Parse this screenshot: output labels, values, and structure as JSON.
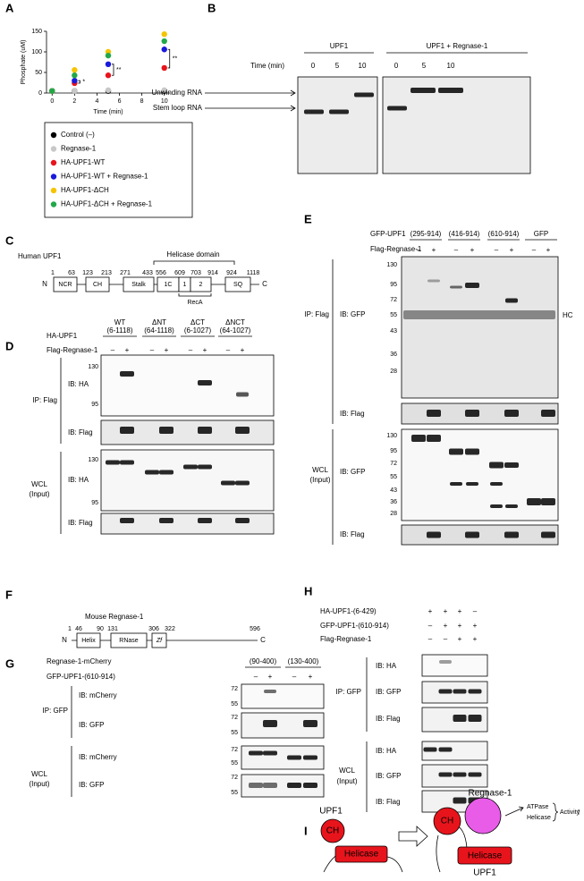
{
  "chart_data": {
    "type": "scatter",
    "letter": "A",
    "ylabel": "Phosphate (uM)",
    "xlabel": "Time (min)",
    "x": [
      0,
      2,
      5,
      10
    ],
    "xlim": [
      -0.5,
      10.5
    ],
    "xticks": [
      0,
      2,
      4,
      6,
      8,
      10
    ],
    "ylim": [
      0,
      150
    ],
    "yticks": [
      0,
      50,
      100,
      150
    ],
    "series": [
      {
        "name": "Control (–)",
        "color": "#000000",
        "values": [
          5,
          5,
          5,
          5
        ]
      },
      {
        "name": "Regnase-1",
        "color": "#c8c8c8",
        "values": [
          5,
          5,
          7,
          7
        ]
      },
      {
        "name": "HA-UPF1-WT",
        "color": "#e8141c",
        "values": [
          5,
          24,
          43,
          61
        ]
      },
      {
        "name": "HA-UPF1-WT + Regnase-1",
        "color": "#1a1adc",
        "values": [
          5,
          30,
          70,
          106
        ]
      },
      {
        "name": "HA-UPF1-ΔCH",
        "color": "#f5c400",
        "values": [
          5,
          56,
          100,
          143
        ]
      },
      {
        "name": "HA-UPF1-ΔCH + Regnase-1",
        "color": "#22a84a",
        "values": [
          5,
          43,
          91,
          126
        ]
      }
    ],
    "significance": [
      "*",
      "**",
      "**"
    ]
  },
  "figure": {
    "b": {
      "letter": "B",
      "groups": [
        "UPF1",
        "UPF1 + Regnase-1"
      ],
      "time_label": "Time (min)",
      "times": [
        0,
        5,
        10,
        0,
        5,
        10
      ],
      "bands": [
        "Unwinding RNA",
        "Stem loop RNA"
      ]
    },
    "c": {
      "letter": "C",
      "title": "Human UPF1",
      "domain_label": "Helicase domain",
      "positions": [
        1,
        63,
        123,
        213,
        271,
        433,
        556,
        609,
        703,
        914,
        924,
        1118
      ],
      "domains": [
        "NCR",
        "CH",
        "Stalk",
        "1C",
        "1",
        "2",
        "SQ"
      ],
      "subdomain": "RecA",
      "n": "N",
      "c": "C"
    },
    "d": {
      "letter": "D",
      "construct_label": "HA-UPF1",
      "treatment": "Flag-Regnase-1",
      "constructs": [
        {
          "name": "WT",
          "range": "(6-1118)"
        },
        {
          "name": "ΔNT",
          "range": "(64-1118)"
        },
        {
          "name": "ΔCT",
          "range": "(6-1027)"
        },
        {
          "name": "ΔNCT",
          "range": "(64-1027)"
        }
      ],
      "signs": [
        "–",
        "+",
        "–",
        "+",
        "–",
        "+",
        "–",
        "+"
      ],
      "ip": "IP: Flag",
      "wcl": [
        "WCL",
        "(Input)"
      ],
      "blots": [
        "IB: HA",
        "IB: Flag",
        "IB: HA",
        "IB: Flag"
      ],
      "markers": [
        130,
        95,
        130,
        95
      ]
    },
    "e": {
      "letter": "E",
      "construct_label": "GFP-UPF1",
      "treatment": "Flag-Regnase-1",
      "constructs": [
        "(295-914)",
        "(416-914)",
        "(610-914)",
        "GFP"
      ],
      "signs": [
        "–",
        "+",
        "–",
        "+",
        "–",
        "+",
        "–",
        "+"
      ],
      "ip": "IP: Flag",
      "wcl": [
        "WCL",
        "(Input)"
      ],
      "blots": [
        "IB: GFP",
        "IB: Flag",
        "IB: GFP",
        "IB: Flag"
      ],
      "hc": "HC",
      "markers": [
        130,
        95,
        72,
        55,
        43,
        36,
        28,
        130,
        95,
        72,
        55,
        43,
        36,
        28
      ]
    },
    "f": {
      "letter": "F",
      "title": "Mouse Regnase-1",
      "positions": [
        1,
        46,
        90,
        131,
        306,
        322,
        596
      ],
      "domains": [
        "Helix",
        "RNase",
        "Zf"
      ],
      "n": "N",
      "c": "C"
    },
    "g": {
      "letter": "G",
      "construct_label": "Regnase-1-mCherry",
      "treatment": "GFP-UPF1-(610-914)",
      "constructs": [
        "(90-400)",
        "(130-400)"
      ],
      "signs": [
        "–",
        "+",
        "–",
        "+"
      ],
      "ip": "IP: GFP",
      "wcl": [
        "WCL",
        "(Input)"
      ],
      "blots": [
        "IB: mCherry",
        "IB: GFP",
        "IB: mCherry",
        "IB: GFP"
      ],
      "markers": [
        72,
        55,
        72,
        55,
        72,
        55,
        72,
        55
      ]
    },
    "h": {
      "letter": "H",
      "row_labels": [
        "HA-UPF1-(6-429)",
        "GFP-UPF1-(610-914)",
        "Flag-Regnase-1"
      ],
      "signs": [
        [
          "+",
          "+",
          "+",
          "–"
        ],
        [
          "–",
          "+",
          "+",
          "+"
        ],
        [
          "–",
          "–",
          "+",
          "+"
        ]
      ],
      "ip": "IP: GFP",
      "wcl": [
        "WCL",
        "(Input)"
      ],
      "blots": [
        "IB: HA",
        "IB: GFP",
        "IB: Flag",
        "IB: HA",
        "IB: GFP",
        "IB: Flag"
      ]
    },
    "i": {
      "letter": "I",
      "left": {
        "protein": "UPF1",
        "ch": "CH",
        "helicase": "Helicase"
      },
      "right": {
        "partner": "Regnase-1",
        "ch": "CH",
        "helicase": "Helicase",
        "protein": "UPF1"
      },
      "outputs": [
        "ATPase",
        "Helicase"
      ],
      "effect": "Activity",
      "arrow": "↑"
    }
  }
}
